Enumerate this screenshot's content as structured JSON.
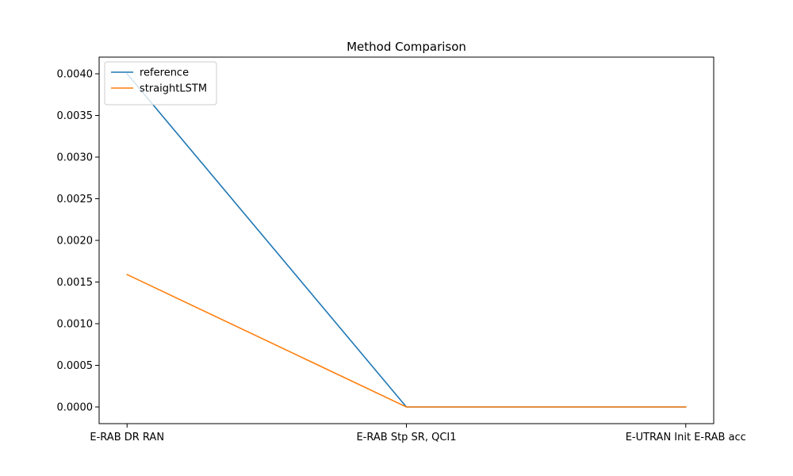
{
  "chart_data": {
    "type": "line",
    "title": "Method Comparison",
    "xlabel": "",
    "ylabel": "",
    "categories": [
      "E-RAB DR RAN",
      "E-RAB Stp SR, QCI1",
      "E-UTRAN Init E-RAB acc"
    ],
    "series": [
      {
        "name": "reference",
        "color": "#1f77b4",
        "values": [
          0.004,
          0.0,
          0.0
        ]
      },
      {
        "name": "straightLSTM",
        "color": "#ff7f0e",
        "values": [
          0.00159,
          0.0,
          0.0
        ]
      }
    ],
    "ylim": [
      -0.0002,
      0.0042
    ],
    "yticks": [
      "0.0000",
      "0.0005",
      "0.0010",
      "0.0015",
      "0.0020",
      "0.0025",
      "0.0030",
      "0.0035",
      "0.0040"
    ],
    "grid": false,
    "legend": "upper left"
  }
}
